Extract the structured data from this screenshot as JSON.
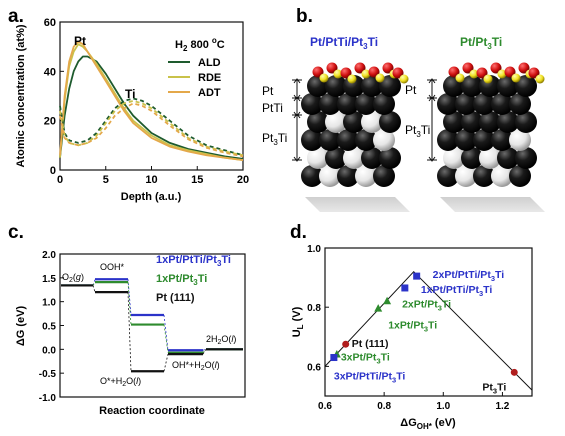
{
  "colors": {
    "ald": "#1e5b2e",
    "rde": "#c9c24a",
    "adt": "#e4a84a",
    "blue": "#2b33c9",
    "green": "#2e8b2e",
    "black": "#111111",
    "red": "#b01e1e",
    "atomPt": "#0a0a0a",
    "atomTi": "#e8e8e8"
  },
  "chart_data": [
    {
      "panel": "a.",
      "type": "line",
      "xlabel": "Depth (a.u.)",
      "ylabel": "Atomic concentration (at%)",
      "xlim": [
        0,
        20
      ],
      "ylim": [
        0,
        60
      ],
      "xticks": [
        "0",
        "5",
        "10",
        "15",
        "20"
      ],
      "yticks": [
        "0",
        "20",
        "40",
        "60"
      ],
      "legend_title": "H2 800 °C",
      "legend_title_parts": {
        "h": "H",
        "sub": "2",
        "rest": " 800 ",
        "sup": "o",
        "unit": "C"
      },
      "annotations": [
        {
          "text": "Pt",
          "x": 2.0,
          "y": 54
        },
        {
          "text": "Ti",
          "x": 7.5,
          "y": 31
        }
      ],
      "series": [
        {
          "name": "ALD",
          "color": "#1e5b2e",
          "element": "Pt",
          "x": [
            0,
            0.5,
            1,
            1.5,
            2,
            2.5,
            3,
            4,
            5,
            6,
            7,
            8,
            10,
            12,
            14,
            16,
            18,
            20
          ],
          "y": [
            5,
            22,
            33,
            40,
            44,
            46,
            46,
            44,
            39,
            33,
            27,
            22,
            15,
            11,
            8.5,
            7,
            5.5,
            4.5
          ]
        },
        {
          "name": "RDE",
          "color": "#c9c24a",
          "element": "Pt",
          "x": [
            0,
            0.5,
            1,
            1.5,
            2,
            2.5,
            3,
            4,
            5,
            6,
            7,
            8,
            10,
            12,
            14,
            16,
            18,
            20
          ],
          "y": [
            5,
            28,
            42,
            48,
            51,
            50,
            48,
            43,
            37,
            31,
            25,
            20,
            14,
            10,
            8,
            6.5,
            5,
            4
          ]
        },
        {
          "name": "ADT",
          "color": "#e4a84a",
          "element": "Pt",
          "x": [
            0,
            0.5,
            1,
            1.5,
            2,
            2.5,
            3,
            4,
            5,
            6,
            7,
            8,
            10,
            12,
            14,
            16,
            18,
            20
          ],
          "y": [
            6,
            30,
            44,
            50,
            52,
            51,
            48,
            42,
            36,
            30,
            24,
            19,
            13,
            9.5,
            7.5,
            6,
            5,
            4
          ]
        },
        {
          "name": "ALD",
          "color": "#1e5b2e",
          "element": "Ti",
          "dashed": true,
          "x": [
            0,
            0.5,
            1,
            2,
            3,
            4,
            5,
            6,
            7,
            8,
            9,
            10,
            12,
            14,
            16,
            18,
            20
          ],
          "y": [
            26,
            15,
            12,
            11,
            12,
            15,
            20,
            25,
            28,
            29,
            28,
            26,
            20,
            14,
            10,
            8,
            6
          ]
        },
        {
          "name": "RDE",
          "color": "#c9c24a",
          "element": "Ti",
          "dashed": true,
          "x": [
            0,
            0.5,
            1,
            2,
            3,
            4,
            5,
            6,
            7,
            8,
            9,
            10,
            12,
            14,
            16,
            18,
            20
          ],
          "y": [
            24,
            14,
            11,
            10,
            11,
            14,
            19,
            24,
            27,
            28,
            27,
            25,
            19,
            13,
            9.5,
            7.5,
            6
          ]
        },
        {
          "name": "ADT",
          "color": "#e4a84a",
          "element": "Ti",
          "dashed": true,
          "x": [
            0,
            0.5,
            1,
            2,
            3,
            4,
            5,
            6,
            7,
            8,
            9,
            10,
            12,
            14,
            16,
            18,
            20
          ],
          "y": [
            22,
            13,
            11,
            10,
            11,
            13,
            17,
            22,
            25,
            27,
            26,
            24,
            18,
            12.5,
            9,
            7,
            5.5
          ]
        }
      ]
    },
    {
      "panel": "c.",
      "type": "line",
      "subtype": "free-energy-step-diagram",
      "xlabel": "Reaction coordinate",
      "ylabel": "ΔG (eV)",
      "ylim": [
        -1.0,
        2.0
      ],
      "yticks": [
        "2.0",
        "1.5",
        "1.0",
        "0.5",
        "0.0",
        "-0.5",
        "-1.0"
      ],
      "grid": false,
      "states": [
        {
          "label": "O2(g)",
          "parts": [
            "O",
            "2",
            "(",
            "g",
            ")"
          ]
        },
        {
          "label": "OOH*",
          "parts": [
            "OOH*"
          ]
        },
        {
          "label": "O*+H2O(l)",
          "parts": [
            "O*+H",
            "2",
            "O(",
            "l",
            ")"
          ]
        },
        {
          "label": "OH*+H2O(l)",
          "parts": [
            "OH*+H",
            "2",
            "O(",
            "l",
            ")"
          ]
        },
        {
          "label": "2H2O(l)",
          "parts": [
            "2H",
            "2",
            "O(",
            "l",
            ")"
          ]
        }
      ],
      "series": [
        {
          "name": "1xPt/PtTi/Pt3Ti",
          "name_parts": {
            "a": "1xPt/PtTi/Pt",
            "sub": "3",
            "b": "Ti"
          },
          "color": "#2b33c9",
          "values": [
            1.34,
            1.47,
            0.72,
            -0.02,
            0.0
          ]
        },
        {
          "name": "1xPt/Pt3Ti",
          "name_parts": {
            "a": "1xPt/Pt",
            "sub": "3",
            "b": "Ti"
          },
          "color": "#2e8b2e",
          "values": [
            1.34,
            1.41,
            0.52,
            -0.07,
            0.0
          ]
        },
        {
          "name": "Pt (111)",
          "name_parts": {
            "a": "Pt (111)",
            "sub": "",
            "b": ""
          },
          "color": "#111111",
          "values": [
            1.34,
            1.2,
            -0.46,
            -0.1,
            0.0
          ]
        }
      ]
    },
    {
      "panel": "d.",
      "type": "scatter",
      "subtype": "volcano",
      "xlabel": "ΔGOH* (eV)",
      "xlabel_parts": {
        "main": "ΔG",
        "sub": "OH*",
        "unit": " (eV)"
      },
      "ylabel": "UL (V)",
      "ylabel_parts": {
        "main": "U",
        "sub": "L",
        "unit": " (V)"
      },
      "xlim": [
        0.6,
        1.3
      ],
      "ylim": [
        0.5,
        1.0
      ],
      "xticks": [
        "0.6",
        "0.8",
        "1.0",
        "1.2"
      ],
      "yticks": [
        "0.6",
        "0.8",
        "1.0"
      ],
      "volcano_line": {
        "x": [
          0.6,
          0.9,
          1.3
        ],
        "y": [
          0.6,
          0.92,
          0.52
        ]
      },
      "points": [
        {
          "label": "2xPt/PtTi/Pt3Ti",
          "parts": [
            "2xPt/PtTi/Pt",
            "3",
            "Ti"
          ],
          "x": 0.91,
          "y": 0.905,
          "marker": "square",
          "color": "#2b33c9",
          "anchor": "start",
          "dx": 16,
          "dy": 2
        },
        {
          "label": "1xPt/PtTi/Pt3Ti",
          "parts": [
            "1xPt/PtTi/Pt",
            "3",
            "Ti"
          ],
          "x": 0.87,
          "y": 0.865,
          "marker": "square",
          "color": "#2b33c9",
          "anchor": "start",
          "dx": 16,
          "dy": 5
        },
        {
          "label": "2xPt/Pt3Ti",
          "parts": [
            "2xPt/Pt",
            "3",
            "Ti"
          ],
          "x": 0.81,
          "y": 0.82,
          "marker": "triangle",
          "color": "#2e8b2e",
          "anchor": "start",
          "dx": 15,
          "dy": 6
        },
        {
          "label": "1xPt/Pt3Ti",
          "parts": [
            "1xPt/Pt",
            "3",
            "Ti"
          ],
          "x": 0.78,
          "y": 0.795,
          "marker": "triangle",
          "color": "#2e8b2e",
          "anchor": "start",
          "dx": 10,
          "dy": 20
        },
        {
          "label": "Pt (111)",
          "parts": [
            "Pt (111)",
            "",
            ""
          ],
          "x": 0.67,
          "y": 0.675,
          "marker": "circle",
          "color": "#b01e1e",
          "anchor": "start",
          "dx": 6,
          "dy": 3
        },
        {
          "label": "3xPt/Pt3Ti",
          "parts": [
            "3xPt/Pt",
            "3",
            "Ti"
          ],
          "x": 0.64,
          "y": 0.64,
          "marker": "triangle",
          "color": "#2e8b2e",
          "anchor": "start",
          "dx": 4,
          "dy": 6
        },
        {
          "label": "3xPt/PtTi/Pt3Ti",
          "parts": [
            "3xPt/PtTi/Pt",
            "3",
            "Ti"
          ],
          "x": 0.63,
          "y": 0.63,
          "marker": "square",
          "color": "#2b33c9",
          "anchor": "start",
          "dx": 0,
          "dy": 22
        },
        {
          "label": "Pt3Ti",
          "parts": [
            "Pt",
            "3",
            "Ti"
          ],
          "x": 1.24,
          "y": 0.58,
          "marker": "circle",
          "color": "#b01e1e",
          "anchor": "end",
          "dx": -8,
          "dy": 18
        }
      ]
    }
  ],
  "panels": {
    "a": {
      "label": "a."
    },
    "b": {
      "label": "b.",
      "left_title": {
        "a": "Pt/PtTi/Pt",
        "sub": "3",
        "b": "Ti"
      },
      "right_title": {
        "a": "Pt/Pt",
        "sub": "3",
        "b": "Ti"
      },
      "left_layers": [
        {
          "a": "Pt",
          "sub": "",
          "b": ""
        },
        {
          "a": "PtTi",
          "sub": "",
          "b": ""
        },
        {
          "a": "Pt",
          "sub": "3",
          "b": "Ti"
        }
      ],
      "right_layers": [
        {
          "a": "Pt",
          "sub": "",
          "b": ""
        },
        {
          "a": "Pt",
          "sub": "3",
          "b": "Ti"
        }
      ]
    },
    "c": {
      "label": "c."
    },
    "d": {
      "label": "d."
    }
  }
}
